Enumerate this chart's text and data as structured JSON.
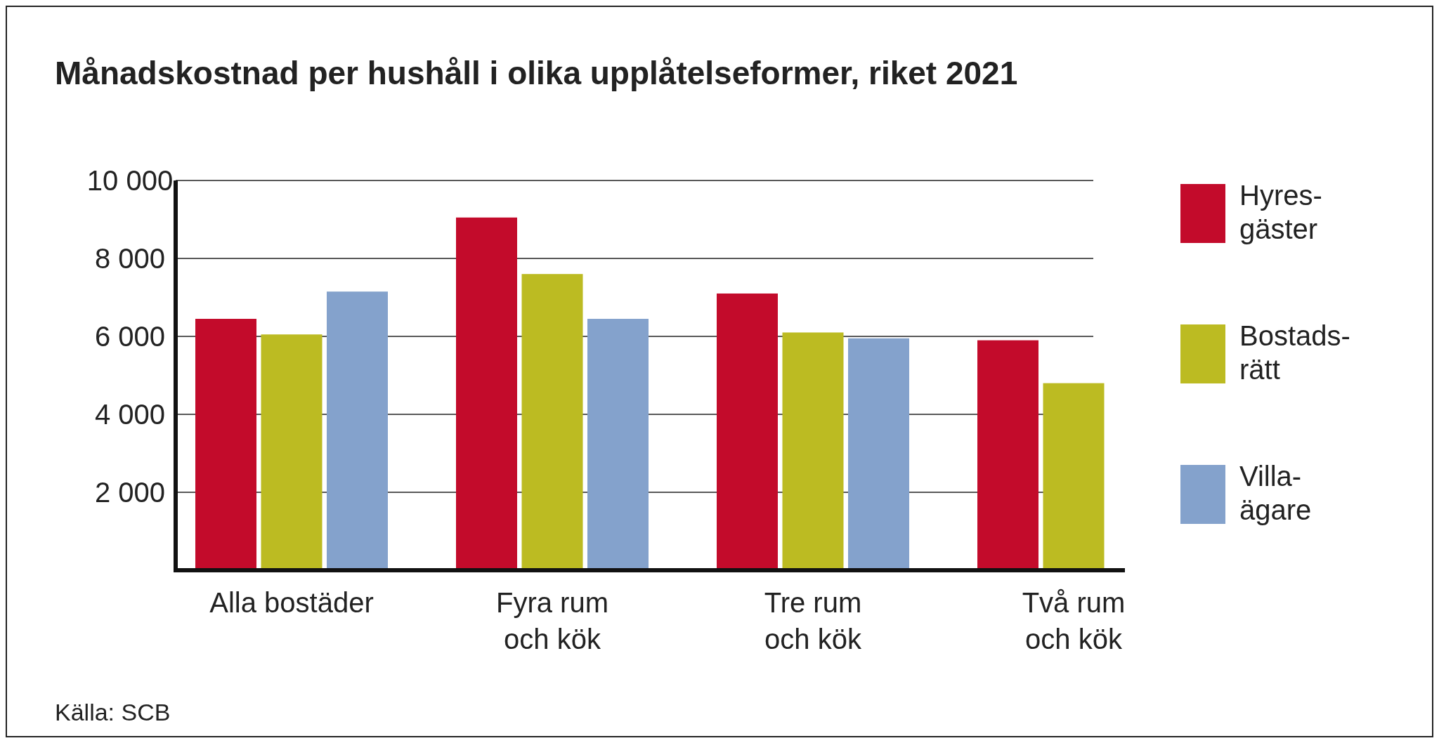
{
  "chart_data": {
    "type": "bar",
    "title": "Månadskostnad per hushåll i olika upplåtelseformer, riket 2021",
    "categories": [
      "Alla bostäder",
      "Fyra rum\noch kök",
      "Tre rum\noch kök",
      "Två rum\noch kök"
    ],
    "series": [
      {
        "name": "Hyres-\ngäster",
        "color": "#c30b2b",
        "values": [
          6450,
          9050,
          7100,
          5900
        ]
      },
      {
        "name": "Bostads-\nrätt",
        "color": "#bcbb22",
        "values": [
          6050,
          7600,
          6100,
          4800
        ]
      },
      {
        "name": "Villa-\nägare",
        "color": "#84a2cc",
        "values": [
          7150,
          6450,
          5950,
          null
        ]
      }
    ],
    "ylim": [
      0,
      10000
    ],
    "yticks": [
      {
        "value": 2000,
        "label": "2 000"
      },
      {
        "value": 4000,
        "label": "4 000"
      },
      {
        "value": 6000,
        "label": "6 000"
      },
      {
        "value": 8000,
        "label": "8 000"
      },
      {
        "value": 10000,
        "label": "10 000"
      }
    ],
    "grid": "y",
    "legend": "right",
    "annotations": [
      "Källa: SCB"
    ]
  }
}
